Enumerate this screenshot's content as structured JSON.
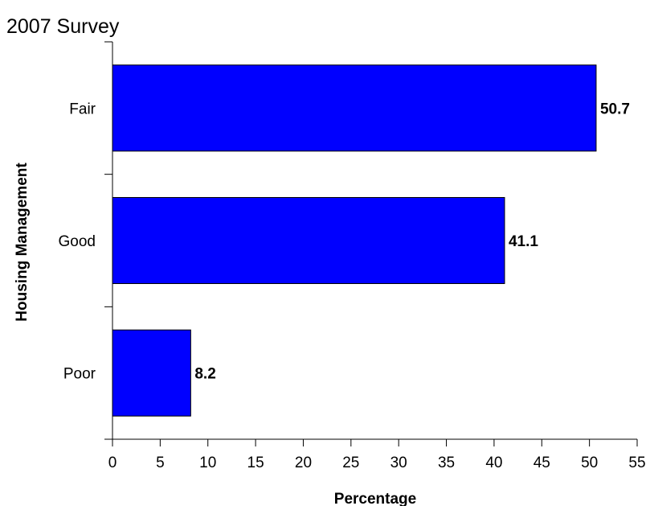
{
  "chart_data": {
    "type": "bar",
    "orientation": "horizontal",
    "title": "2007 Survey",
    "xlabel": "Percentage",
    "ylabel": "Housing Management",
    "categories": [
      "Fair",
      "Good",
      "Poor"
    ],
    "values": [
      50.7,
      41.1,
      8.2
    ],
    "data_labels": [
      "50.7",
      "41.1",
      "8.2"
    ],
    "xlim": [
      0,
      55
    ],
    "xticks": [
      0,
      5,
      10,
      15,
      20,
      25,
      30,
      35,
      40,
      45,
      50,
      55
    ],
    "grid": false,
    "legend": "none",
    "colors": {
      "bar_fill": "#0000ff",
      "bar_stroke": "#000000"
    }
  }
}
